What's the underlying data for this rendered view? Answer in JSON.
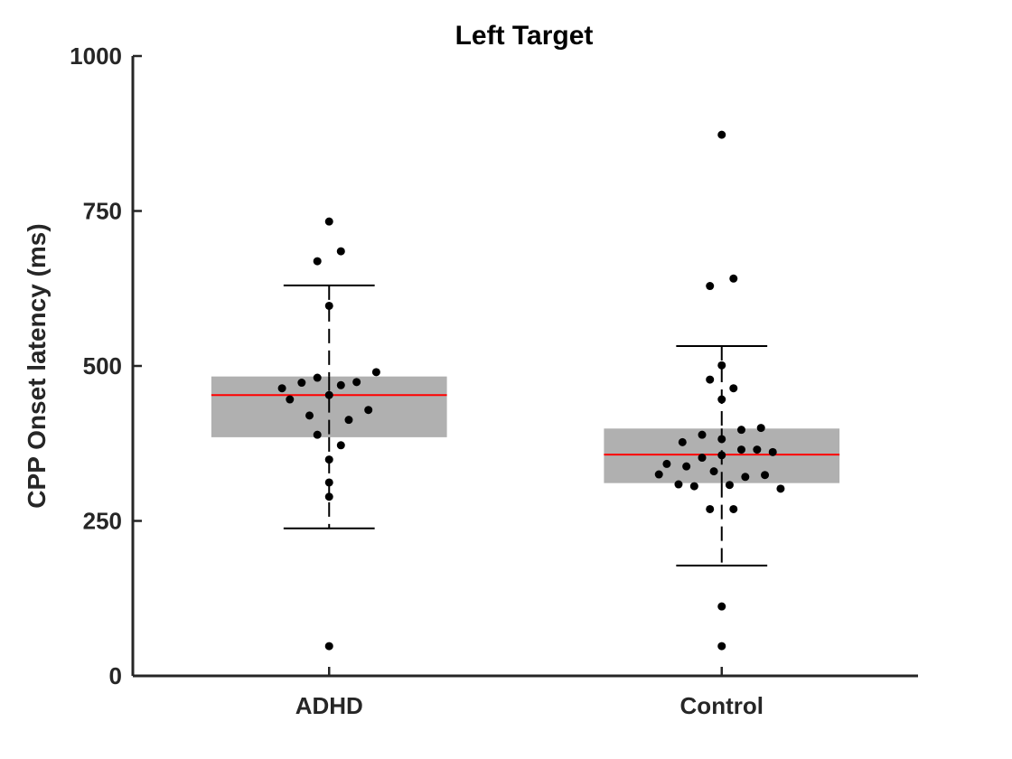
{
  "chart_data": {
    "type": "box",
    "title": "Left Target",
    "xlabel": "",
    "ylabel": "CPP Onset latency (ms)",
    "categories": [
      "ADHD",
      "Control"
    ],
    "ylim": [
      0,
      1000
    ],
    "yticks": [
      0,
      250,
      500,
      750,
      1000
    ],
    "grid": false,
    "colors": {
      "box_fill": "#b0b0b0",
      "median": "#ff0000",
      "whisker": "#000000",
      "points": "#000000",
      "axis": "#262626"
    },
    "boxes": [
      {
        "category": "ADHD",
        "q1": 385,
        "median": 453,
        "q3": 483,
        "whisker_low": 238,
        "whisker_high": 630,
        "points": [
          {
            "x": 0.0,
            "y": 733
          },
          {
            "x": 0.03,
            "y": 685
          },
          {
            "x": -0.03,
            "y": 669
          },
          {
            "x": 0.0,
            "y": 597
          },
          {
            "x": 0.12,
            "y": 490
          },
          {
            "x": -0.03,
            "y": 481
          },
          {
            "x": 0.07,
            "y": 474
          },
          {
            "x": -0.07,
            "y": 473
          },
          {
            "x": 0.03,
            "y": 469
          },
          {
            "x": -0.12,
            "y": 464
          },
          {
            "x": 0.0,
            "y": 453
          },
          {
            "x": -0.1,
            "y": 446
          },
          {
            "x": 0.1,
            "y": 429
          },
          {
            "x": -0.05,
            "y": 420
          },
          {
            "x": 0.05,
            "y": 413
          },
          {
            "x": -0.03,
            "y": 389
          },
          {
            "x": 0.03,
            "y": 372
          },
          {
            "x": 0.0,
            "y": 349
          },
          {
            "x": 0.0,
            "y": 312
          },
          {
            "x": 0.0,
            "y": 289
          },
          {
            "x": 0.0,
            "y": 48
          }
        ]
      },
      {
        "category": "Control",
        "q1": 311,
        "median": 357,
        "q3": 399,
        "whisker_low": 178,
        "whisker_high": 532,
        "points": [
          {
            "x": 0.0,
            "y": 873
          },
          {
            "x": 0.03,
            "y": 641
          },
          {
            "x": -0.03,
            "y": 629
          },
          {
            "x": 0.0,
            "y": 501
          },
          {
            "x": -0.03,
            "y": 478
          },
          {
            "x": 0.03,
            "y": 464
          },
          {
            "x": 0.0,
            "y": 446
          },
          {
            "x": 0.1,
            "y": 400
          },
          {
            "x": 0.05,
            "y": 397
          },
          {
            "x": -0.05,
            "y": 389
          },
          {
            "x": 0.0,
            "y": 382
          },
          {
            "x": -0.1,
            "y": 377
          },
          {
            "x": 0.05,
            "y": 365
          },
          {
            "x": 0.09,
            "y": 365
          },
          {
            "x": 0.13,
            "y": 361
          },
          {
            "x": 0.0,
            "y": 356
          },
          {
            "x": -0.05,
            "y": 352
          },
          {
            "x": -0.14,
            "y": 342
          },
          {
            "x": -0.09,
            "y": 338
          },
          {
            "x": -0.02,
            "y": 330
          },
          {
            "x": -0.16,
            "y": 325
          },
          {
            "x": 0.11,
            "y": 324
          },
          {
            "x": 0.06,
            "y": 321
          },
          {
            "x": -0.11,
            "y": 309
          },
          {
            "x": -0.07,
            "y": 306
          },
          {
            "x": 0.02,
            "y": 308
          },
          {
            "x": 0.15,
            "y": 302
          },
          {
            "x": -0.03,
            "y": 269
          },
          {
            "x": 0.03,
            "y": 269
          },
          {
            "x": 0.0,
            "y": 112
          },
          {
            "x": 0.0,
            "y": 48
          }
        ]
      }
    ]
  }
}
